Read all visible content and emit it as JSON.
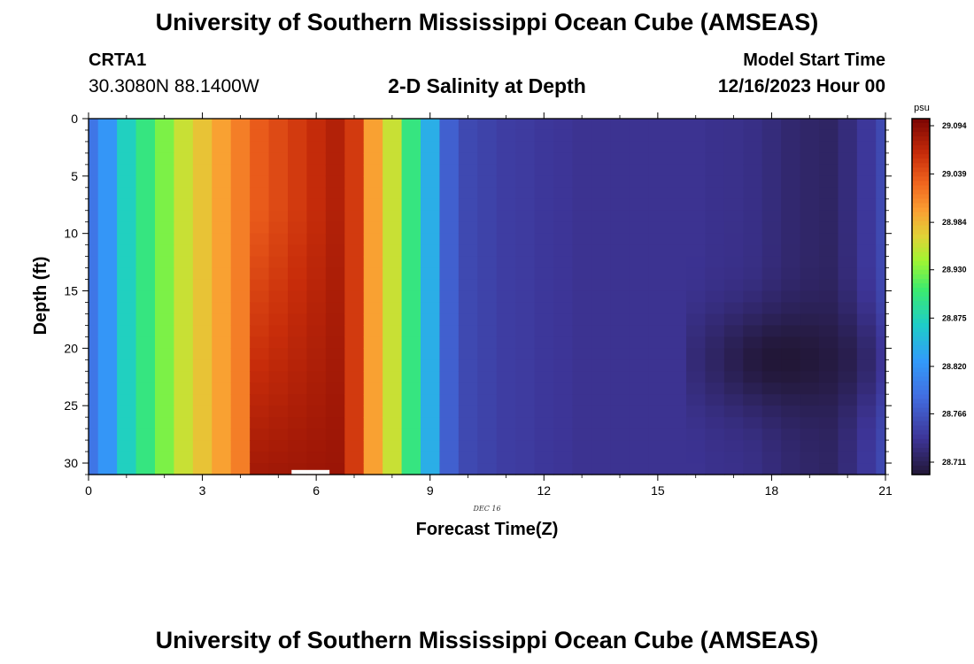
{
  "page": {
    "title": "University of Southern Mississippi Ocean Cube (AMSEAS)",
    "footer_title": "University of Southern Mississippi Ocean Cube (AMSEAS)",
    "station_id": "CRTA1",
    "station_coords": "30.3080N  88.1400W",
    "plot_title": "2-D Salinity at Depth",
    "model_start_label": "Model Start Time",
    "model_start_value": "12/16/2023 Hour 00"
  },
  "chart_data": {
    "type": "heatmap",
    "title": "2-D Salinity at Depth",
    "xlabel": "Forecast Time(Z)",
    "ylabel": "Depth (ft)",
    "date_label": "DEC 16",
    "x_ticks": [
      "0",
      "3",
      "6",
      "9",
      "12",
      "15",
      "18",
      "21"
    ],
    "y_ticks": [
      "0",
      "5",
      "10",
      "15",
      "20",
      "25",
      "30"
    ],
    "xlim": [
      0,
      21
    ],
    "ylim": [
      0,
      31
    ],
    "time_step_hours": 0.5,
    "salinity_by_time": [
      28.79,
      28.82,
      28.87,
      28.9,
      28.93,
      28.96,
      28.98,
      29.0,
      29.02,
      29.04,
      29.05,
      29.06,
      29.07,
      29.08,
      29.06,
      29.0,
      28.96,
      28.9,
      28.84,
      28.77,
      28.75,
      28.745,
      28.74,
      28.738,
      28.735,
      28.733,
      28.73,
      28.73,
      28.73,
      28.73,
      28.73,
      28.73,
      28.73,
      28.728,
      28.727,
      28.725,
      28.72,
      28.715,
      28.712,
      28.71,
      28.72,
      28.735,
      28.75
    ],
    "near_bottom_max": 29.094,
    "low_salinity_anomaly": {
      "time": 18.5,
      "depth": 21,
      "value": 28.695
    },
    "colorbar": {
      "unit": "psu",
      "tick_labels": [
        "29.094",
        "29.039",
        "28.984",
        "28.930",
        "28.875",
        "28.820",
        "28.766",
        "28.711"
      ],
      "min": 28.69,
      "max": 29.11
    }
  }
}
